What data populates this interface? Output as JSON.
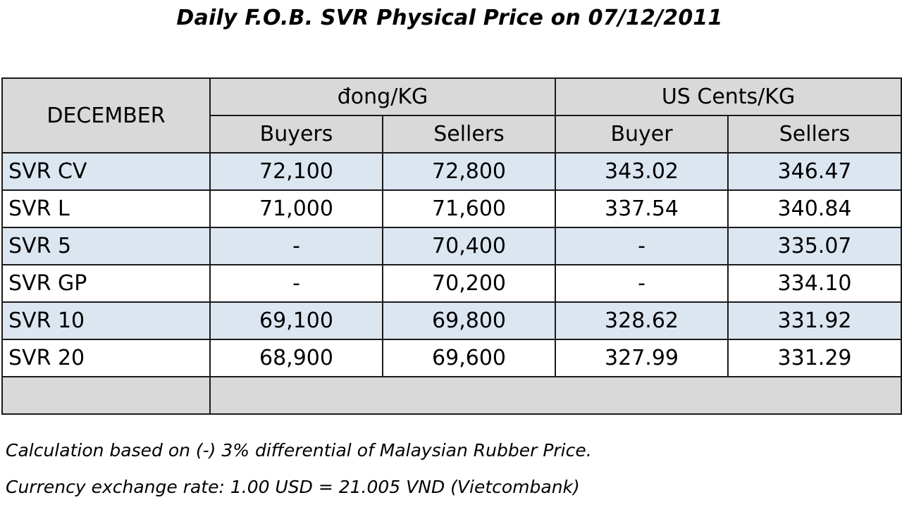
{
  "title": "Daily F.O.B. SVR Physical Price on 07/12/2011",
  "header": {
    "month": "DECEMBER",
    "vnd_group": "đong/KG",
    "usd_group": "US Cents/KG",
    "vnd_buyers": "Buyers",
    "vnd_sellers": "Sellers",
    "usd_buyer": "Buyer",
    "usd_sellers": "Sellers"
  },
  "rows": [
    {
      "grade": "SVR CV",
      "vnd_buy": "72,100",
      "vnd_sell": "72,800",
      "usd_buy": "343.02",
      "usd_sell": "346.47"
    },
    {
      "grade": "SVR L",
      "vnd_buy": "71,000",
      "vnd_sell": "71,600",
      "usd_buy": "337.54",
      "usd_sell": "340.84"
    },
    {
      "grade": "SVR 5",
      "vnd_buy": "-",
      "vnd_sell": "70,400",
      "usd_buy": "-",
      "usd_sell": "335.07"
    },
    {
      "grade": "SVR GP",
      "vnd_buy": "-",
      "vnd_sell": "70,200",
      "usd_buy": "-",
      "usd_sell": "334.10"
    },
    {
      "grade": "SVR 10",
      "vnd_buy": "69,100",
      "vnd_sell": "69,800",
      "usd_buy": "328.62",
      "usd_sell": "331.92"
    },
    {
      "grade": "SVR 20",
      "vnd_buy": "68,900",
      "vnd_sell": "69,600",
      "usd_buy": "327.99",
      "usd_sell": "331.29"
    }
  ],
  "notes": {
    "calculation": "Calculation based on (-) 3% differential of Malaysian Rubber Price.",
    "exchange_rate": "Currency exchange rate: 1.00 USD = 21.005 VND (Vietcombank)"
  },
  "colors": {
    "header_bg": "#d9d9d9",
    "shaded_row_bg": "#dce6f1",
    "border": "#1a1a1a"
  }
}
